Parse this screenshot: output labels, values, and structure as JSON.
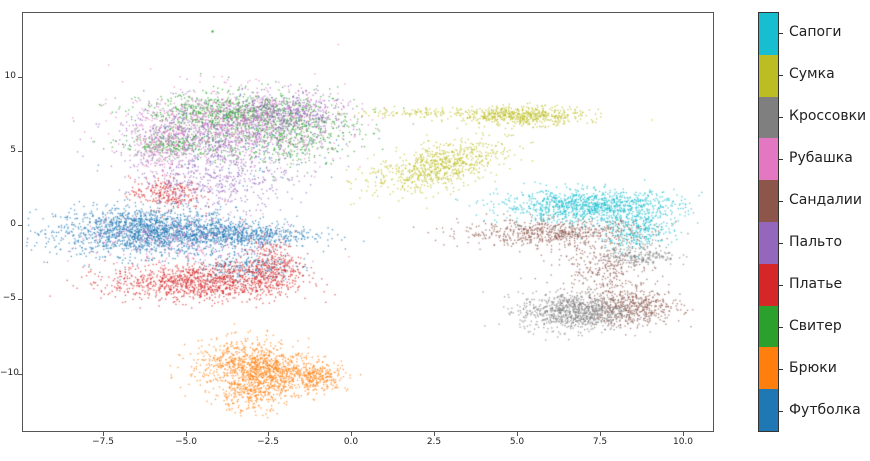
{
  "chart_data": {
    "type": "scatter",
    "title": "",
    "xlabel": "",
    "ylabel": "",
    "xlim": [
      -9.9,
      10.9
    ],
    "ylim": [
      -14,
      14.2
    ],
    "grid": false,
    "x_ticks": [
      "−7.5",
      "−5.0",
      "−2.5",
      "0.0",
      "2.5",
      "5.0",
      "7.5",
      "10.0"
    ],
    "x_tick_values": [
      -7.5,
      -5.0,
      -2.5,
      0.0,
      2.5,
      5.0,
      7.5,
      10.0
    ],
    "y_ticks": [
      "10",
      "5",
      "0",
      "−5",
      "−10"
    ],
    "y_tick_values": [
      10,
      5,
      0,
      -5,
      -10
    ],
    "legend_position": "colorbar-right",
    "colorbar": {
      "labels_top_to_bottom": [
        "Сапоги",
        "Сумка",
        "Кроссовки",
        "Рубашка",
        "Сандалии",
        "Пальто",
        "Платье",
        "Свитер",
        "Брюки",
        "Футболка"
      ],
      "colors_top_to_bottom": [
        "#17becf",
        "#bcbd22",
        "#7f7f7f",
        "#e377c2",
        "#8c564b",
        "#9467bd",
        "#d62728",
        "#2ca02c",
        "#ff7f0e",
        "#1f77b4"
      ]
    },
    "series": [
      {
        "name": "Футболка",
        "color": "#1f77b4",
        "clusters": [
          {
            "cx": -6.2,
            "cy": -0.4,
            "sx": 1.5,
            "sy": 0.9,
            "n": 1700
          },
          {
            "cx": -3.5,
            "cy": -0.6,
            "sx": 1.3,
            "sy": 0.5,
            "n": 700
          },
          {
            "cx": -3.2,
            "cy": -2.7,
            "sx": 0.8,
            "sy": 0.6,
            "n": 250
          },
          {
            "cx": -3.0,
            "cy": 5.5,
            "sx": 1.8,
            "sy": 1.8,
            "n": 120
          }
        ]
      },
      {
        "name": "Брюки",
        "color": "#ff7f0e",
        "clusters": [
          {
            "cx": -3.2,
            "cy": -9.3,
            "sx": 0.9,
            "sy": 0.9,
            "n": 650
          },
          {
            "cx": -2.1,
            "cy": -10.0,
            "sx": 0.8,
            "sy": 0.7,
            "n": 500
          },
          {
            "cx": -3.1,
            "cy": -11.3,
            "sx": 0.6,
            "sy": 0.7,
            "n": 300
          },
          {
            "cx": -1.0,
            "cy": -10.2,
            "sx": 0.5,
            "sy": 0.5,
            "n": 200
          }
        ]
      },
      {
        "name": "Свитер",
        "color": "#2ca02c",
        "clusters": [
          {
            "cx": -3.8,
            "cy": 7.6,
            "sx": 1.4,
            "sy": 0.7,
            "n": 600
          },
          {
            "cx": -2.0,
            "cy": 6.5,
            "sx": 1.2,
            "sy": 1.3,
            "n": 650
          },
          {
            "cx": -5.3,
            "cy": 5.5,
            "sx": 0.9,
            "sy": 0.5,
            "n": 280
          }
        ]
      },
      {
        "name": "Платье",
        "color": "#d62728",
        "clusters": [
          {
            "cx": -4.6,
            "cy": -3.8,
            "sx": 1.5,
            "sy": 0.7,
            "n": 1100
          },
          {
            "cx": -2.4,
            "cy": -2.8,
            "sx": 0.5,
            "sy": 1.0,
            "n": 350
          },
          {
            "cx": -5.6,
            "cy": 2.2,
            "sx": 0.6,
            "sy": 0.6,
            "n": 250
          }
        ]
      },
      {
        "name": "Пальто",
        "color": "#9467bd",
        "clusters": [
          {
            "cx": -4.4,
            "cy": 6.0,
            "sx": 1.5,
            "sy": 1.3,
            "n": 750
          },
          {
            "cx": -2.0,
            "cy": 7.5,
            "sx": 1.0,
            "sy": 0.8,
            "n": 500
          },
          {
            "cx": -4.0,
            "cy": 3.0,
            "sx": 1.3,
            "sy": 1.0,
            "n": 400
          }
        ]
      },
      {
        "name": "Сандалии",
        "color": "#8c564b",
        "clusters": [
          {
            "cx": 6.2,
            "cy": -0.5,
            "sx": 1.6,
            "sy": 0.5,
            "n": 700
          },
          {
            "cx": 8.5,
            "cy": -5.5,
            "sx": 0.8,
            "sy": 0.7,
            "n": 500
          },
          {
            "cx": 7.5,
            "cy": -2.8,
            "sx": 0.7,
            "sy": 0.9,
            "n": 250
          }
        ]
      },
      {
        "name": "Рубашка",
        "color": "#e377c2",
        "clusters": [
          {
            "cx": -3.5,
            "cy": 6.8,
            "sx": 1.8,
            "sy": 1.4,
            "n": 700
          },
          {
            "cx": -5.7,
            "cy": 5.5,
            "sx": 0.4,
            "sy": 1.3,
            "n": 200
          },
          {
            "cx": -5.0,
            "cy": -1.0,
            "sx": 1.8,
            "sy": 0.9,
            "n": 250
          }
        ]
      },
      {
        "name": "Кроссовки",
        "color": "#7f7f7f",
        "clusters": [
          {
            "cx": 6.7,
            "cy": -5.8,
            "sx": 0.9,
            "sy": 0.7,
            "n": 900
          },
          {
            "cx": 8.7,
            "cy": -2.0,
            "sx": 0.6,
            "sy": 0.4,
            "n": 200
          }
        ]
      },
      {
        "name": "Сумка",
        "color": "#bcbd22",
        "clusters": [
          {
            "cx": 2.6,
            "cy": 4.0,
            "sx": 0.7,
            "sy": 1.3,
            "n": 750,
            "rot": -0.9
          },
          {
            "cx": 5.2,
            "cy": 7.4,
            "sx": 1.0,
            "sy": 0.35,
            "n": 550
          },
          {
            "cx": 2.2,
            "cy": 7.6,
            "sx": 1.2,
            "sy": 0.2,
            "n": 120
          }
        ]
      },
      {
        "name": "Сапоги",
        "color": "#17becf",
        "clusters": [
          {
            "cx": 7.2,
            "cy": 1.3,
            "sx": 1.5,
            "sy": 0.6,
            "n": 1100
          },
          {
            "cx": 8.6,
            "cy": -0.3,
            "sx": 0.6,
            "sy": 0.7,
            "n": 300
          }
        ]
      }
    ],
    "outliers": [
      {
        "x": -4.2,
        "y": 13.1,
        "color": "#2ca02c"
      }
    ]
  }
}
